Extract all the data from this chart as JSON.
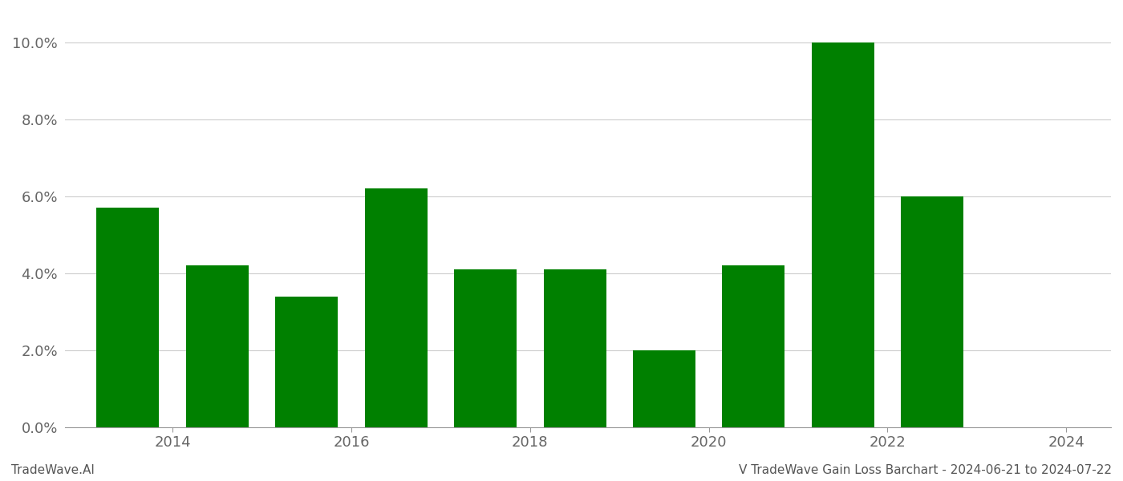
{
  "years": [
    2013.5,
    2014.5,
    2015.5,
    2016.5,
    2017.5,
    2018.5,
    2019.5,
    2020.5,
    2021.5,
    2022.5
  ],
  "values": [
    0.057,
    0.042,
    0.034,
    0.062,
    0.041,
    0.041,
    0.02,
    0.042,
    0.1,
    0.06
  ],
  "bar_color": "#008000",
  "bar_width": 0.7,
  "xlim": [
    2012.8,
    2024.5
  ],
  "ylim": [
    0,
    0.108
  ],
  "xticks": [
    2014,
    2016,
    2018,
    2020,
    2022,
    2024
  ],
  "yticks": [
    0.0,
    0.02,
    0.04,
    0.06,
    0.08,
    0.1
  ],
  "ytick_labels": [
    "0.0%",
    "2.0%",
    "4.0%",
    "6.0%",
    "8.0%",
    "10.0%"
  ],
  "footer_left": "TradeWave.AI",
  "footer_right": "V TradeWave Gain Loss Barchart - 2024-06-21 to 2024-07-22",
  "footer_fontsize": 11,
  "tick_fontsize": 13,
  "grid_color": "#cccccc",
  "background_color": "#ffffff",
  "spine_color": "#999999"
}
